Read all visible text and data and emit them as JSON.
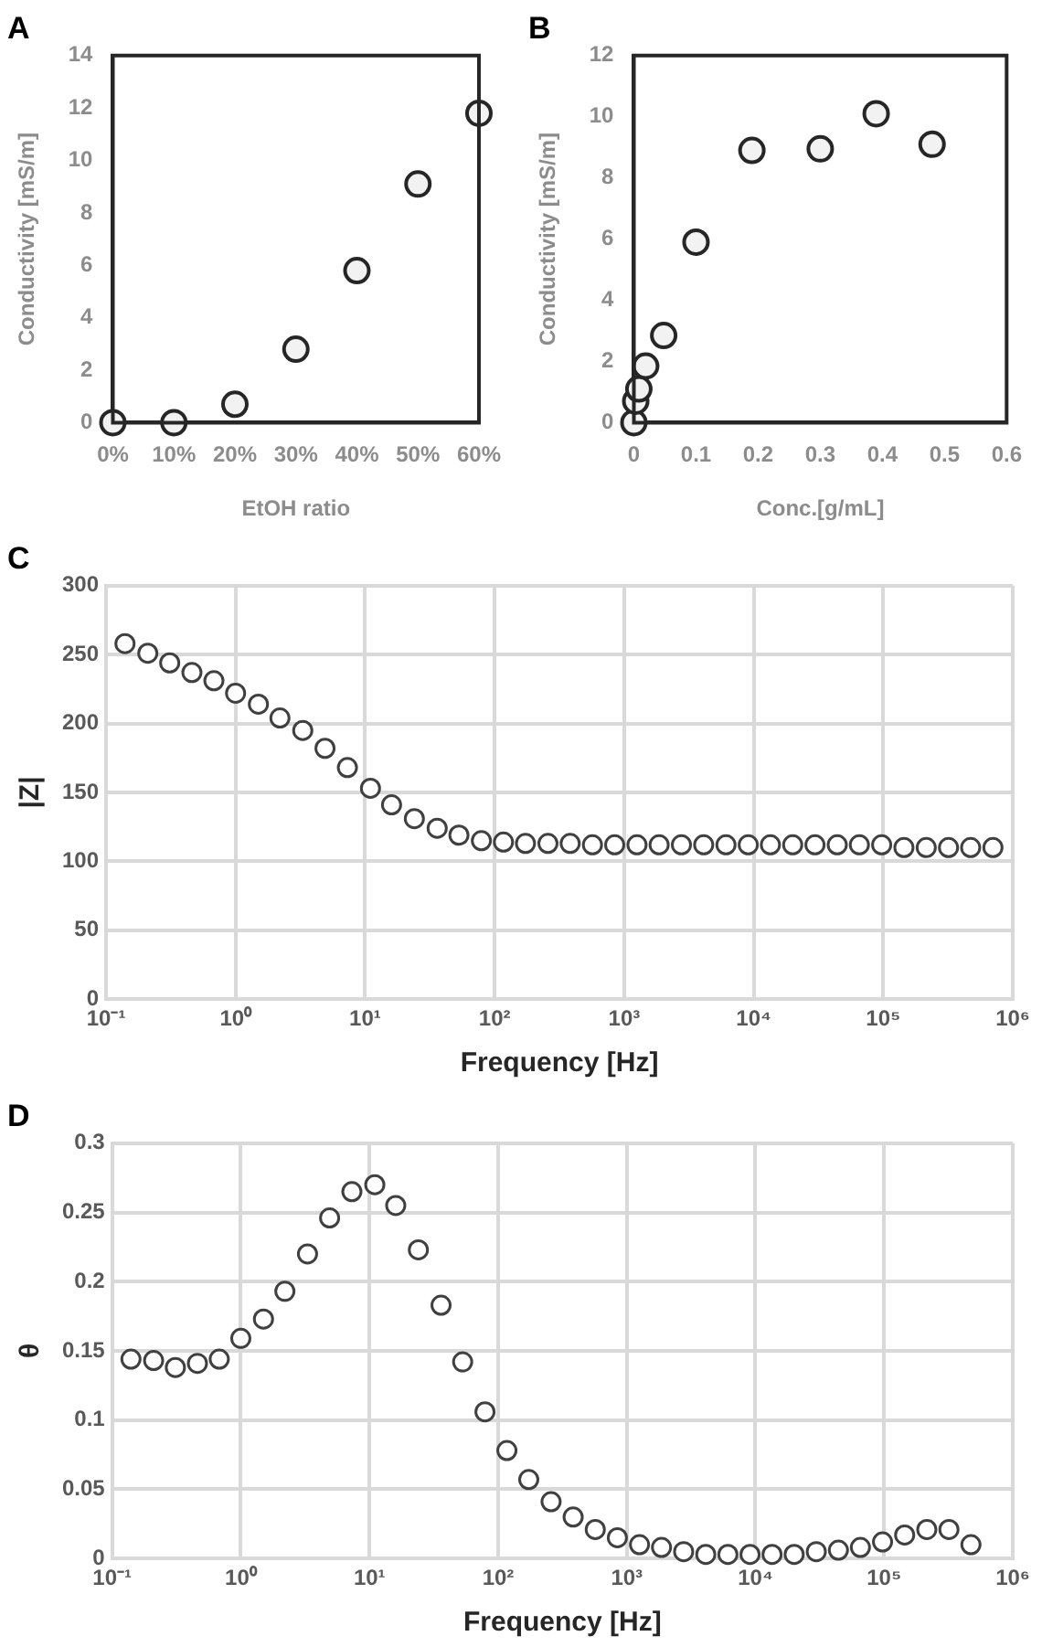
{
  "chart_data": [
    {
      "type": "scatter",
      "title": "A",
      "xlabel": "EtOH ratio",
      "ylabel": "Conductivity [mS/m]",
      "x": [
        0,
        10,
        20,
        30,
        40,
        50,
        60
      ],
      "series": [
        {
          "color": "#262626",
          "values": [
            0,
            0,
            0.7,
            2.8,
            5.8,
            9.1,
            11.8
          ]
        }
      ],
      "xlim": [
        0,
        60
      ],
      "xticks": [
        {
          "value": 0,
          "label": "0%"
        },
        {
          "value": 10,
          "label": "10%"
        },
        {
          "value": 20,
          "label": "20%"
        },
        {
          "value": 30,
          "label": "30%"
        },
        {
          "value": 40,
          "label": "40%"
        },
        {
          "value": 50,
          "label": "50%"
        },
        {
          "value": 60,
          "label": "60%"
        }
      ],
      "ylim": [
        0,
        14
      ],
      "yticks": [
        0,
        2,
        4,
        6,
        8,
        10,
        12,
        14
      ],
      "grid": false,
      "marker": "circle"
    },
    {
      "type": "scatter",
      "title": "B",
      "xlabel": "Conc.[g/mL]",
      "ylabel": "Conductivity [mS/m]",
      "x": [
        0,
        0.003,
        0.008,
        0.019,
        0.048,
        0.1,
        0.19,
        0.3,
        0.39,
        0.48
      ],
      "series": [
        {
          "color": "#262626",
          "values": [
            0,
            0.7,
            1.1,
            1.85,
            2.85,
            5.9,
            8.9,
            8.95,
            10.1,
            9.1
          ]
        }
      ],
      "xlim": [
        0,
        0.6
      ],
      "xticks": [
        0,
        0.1,
        0.2,
        0.3,
        0.4,
        0.5,
        0.6
      ],
      "ylim": [
        0,
        12
      ],
      "yticks": [
        0,
        2,
        4,
        6,
        8,
        10,
        12
      ],
      "grid": false,
      "marker": "circle"
    },
    {
      "type": "scatter",
      "title": "C",
      "xlabel": "Frequency [Hz]",
      "ylabel": "|Z|",
      "x": [
        0.14,
        0.21,
        0.31,
        0.46,
        0.68,
        1.0,
        1.5,
        2.2,
        3.3,
        4.9,
        7.3,
        11,
        16,
        24,
        36,
        53,
        79,
        117,
        173,
        258,
        383,
        569,
        845,
        1256,
        1862,
        2767,
        4111,
        6109,
        9078,
        13460,
        20000,
        29720,
        44160,
        65460,
        97270,
        144500,
        214800,
        319200,
        473200,
        703100
      ],
      "series": [
        {
          "color": "#404040",
          "values": [
            258,
            251,
            244,
            237,
            231,
            222,
            214,
            204,
            195,
            182,
            168,
            153,
            141,
            131,
            124,
            119,
            115,
            114,
            113,
            113,
            113,
            112,
            112,
            112,
            112,
            112,
            112,
            112,
            112,
            112,
            112,
            112,
            112,
            112,
            112,
            110,
            110,
            110,
            110,
            110
          ]
        }
      ],
      "log": "x",
      "xlim": [
        0.1,
        1000000
      ],
      "xticks": [
        {
          "value": 0.1,
          "label": "10⁻¹"
        },
        {
          "value": 1,
          "label": "10⁰"
        },
        {
          "value": 10,
          "label": "10¹"
        },
        {
          "value": 100,
          "label": "10²"
        },
        {
          "value": 1000,
          "label": "10³"
        },
        {
          "value": 10000,
          "label": "10⁴"
        },
        {
          "value": 100000,
          "label": "10⁵"
        },
        {
          "value": 1000000,
          "label": "10⁶"
        }
      ],
      "ylim": [
        0,
        300
      ],
      "yticks": [
        0,
        50,
        100,
        150,
        200,
        250,
        300
      ],
      "grid": true,
      "marker": "circle"
    },
    {
      "type": "scatter",
      "title": "D",
      "xlabel": "Frequency [Hz]",
      "ylabel": "θ",
      "x": [
        0.14,
        0.21,
        0.31,
        0.46,
        0.68,
        1.0,
        1.5,
        2.2,
        3.3,
        4.9,
        7.3,
        11,
        16,
        24,
        36,
        53,
        79,
        117,
        173,
        258,
        383,
        569,
        845,
        1256,
        1862,
        2767,
        4111,
        6109,
        9078,
        13460,
        20000,
        29720,
        44160,
        65460,
        97270,
        144500,
        214800,
        319200,
        473200
      ],
      "series": [
        {
          "color": "#404040",
          "values": [
            0.144,
            0.143,
            0.138,
            0.141,
            0.144,
            0.159,
            0.173,
            0.193,
            0.22,
            0.246,
            0.265,
            0.27,
            0.255,
            0.223,
            0.183,
            0.142,
            0.106,
            0.078,
            0.057,
            0.041,
            0.03,
            0.021,
            0.015,
            0.01,
            0.008,
            0.005,
            0.003,
            0.003,
            0.003,
            0.003,
            0.003,
            0.005,
            0.006,
            0.008,
            0.012,
            0.017,
            0.021,
            0.021,
            0.01
          ]
        }
      ],
      "log": "x",
      "xlim": [
        0.1,
        1000000
      ],
      "xticks": [
        {
          "value": 0.1,
          "label": "10⁻¹"
        },
        {
          "value": 1,
          "label": "10⁰"
        },
        {
          "value": 10,
          "label": "10¹"
        },
        {
          "value": 100,
          "label": "10²"
        },
        {
          "value": 1000,
          "label": "10³"
        },
        {
          "value": 10000,
          "label": "10⁴"
        },
        {
          "value": 100000,
          "label": "10⁵"
        },
        {
          "value": 1000000,
          "label": "10⁶"
        }
      ],
      "ylim": [
        0,
        0.3
      ],
      "yticks": [
        0,
        0.05,
        0.1,
        0.15,
        0.2,
        0.25,
        0.3
      ],
      "grid": true,
      "marker": "circle"
    }
  ]
}
